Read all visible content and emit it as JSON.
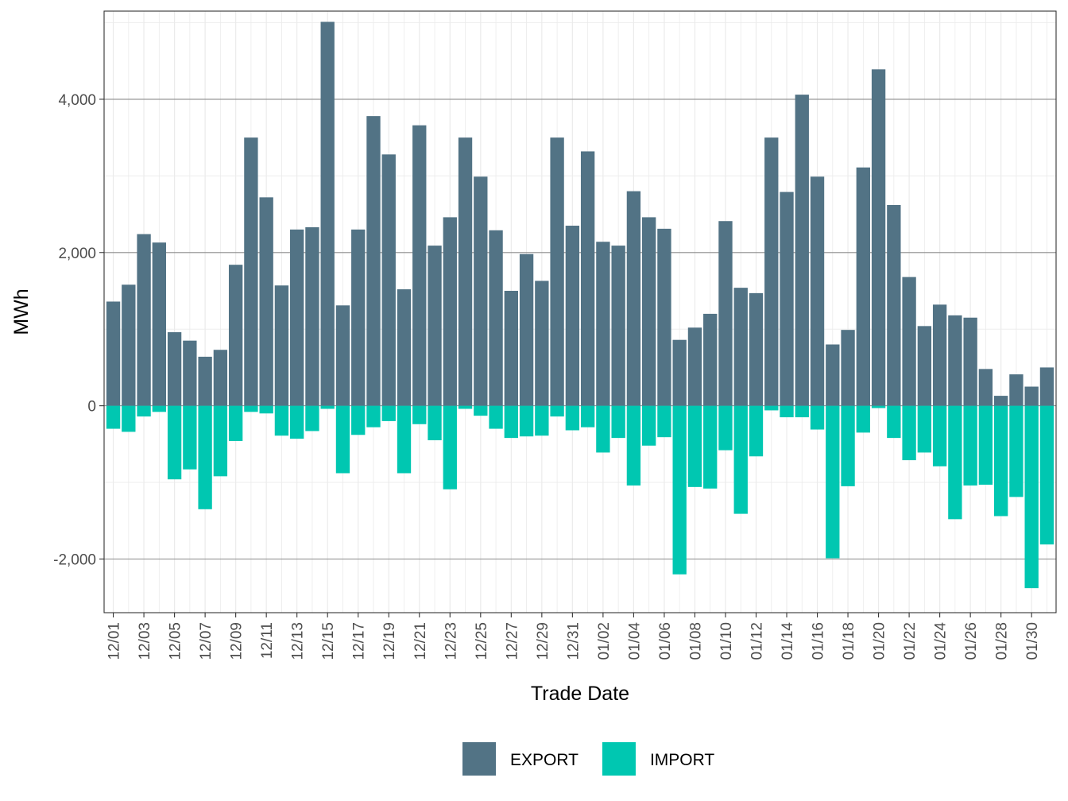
{
  "chart_data": {
    "type": "bar",
    "xlabel": "Trade Date",
    "ylabel": "MWh",
    "ylim": [
      -2700,
      5150
    ],
    "yticks": [
      -2000,
      0,
      2000,
      4000
    ],
    "ytick_labels": [
      "-2,000",
      "0",
      "2,000",
      "4,000"
    ],
    "grid": true,
    "legend_position": "bottom",
    "categories": [
      "12/01",
      "12/02",
      "12/03",
      "12/04",
      "12/05",
      "12/06",
      "12/07",
      "12/08",
      "12/09",
      "12/10",
      "12/11",
      "12/12",
      "12/13",
      "12/14",
      "12/15",
      "12/16",
      "12/17",
      "12/18",
      "12/19",
      "12/20",
      "12/21",
      "12/22",
      "12/23",
      "12/24",
      "12/25",
      "12/26",
      "12/27",
      "12/28",
      "12/29",
      "12/30",
      "12/31",
      "01/01",
      "01/02",
      "01/03",
      "01/04",
      "01/05",
      "01/06",
      "01/07",
      "01/08",
      "01/09",
      "01/10",
      "01/11",
      "01/12",
      "01/13",
      "01/14",
      "01/15",
      "01/16",
      "01/17",
      "01/18",
      "01/19",
      "01/20",
      "01/21",
      "01/22",
      "01/23",
      "01/24",
      "01/25",
      "01/26",
      "01/27",
      "01/28",
      "01/29",
      "01/30",
      "01/31"
    ],
    "x_tick_labels": [
      "12/01",
      "12/03",
      "12/05",
      "12/07",
      "12/09",
      "12/11",
      "12/13",
      "12/15",
      "12/17",
      "12/19",
      "12/21",
      "12/23",
      "12/25",
      "12/27",
      "12/29",
      "12/31",
      "01/02",
      "01/04",
      "01/06",
      "01/08",
      "01/10",
      "01/12",
      "01/14",
      "01/16",
      "01/18",
      "01/20",
      "01/22",
      "01/24",
      "01/26",
      "01/28",
      "01/30"
    ],
    "series": [
      {
        "name": "EXPORT",
        "color": "#527385",
        "values": [
          1360,
          1580,
          2240,
          2130,
          960,
          850,
          640,
          730,
          1840,
          3500,
          2720,
          1570,
          2300,
          2330,
          5010,
          1310,
          2300,
          3780,
          3280,
          1520,
          3660,
          2090,
          2460,
          3500,
          2990,
          2290,
          1500,
          1980,
          1630,
          3500,
          2350,
          3320,
          2140,
          2090,
          2800,
          2460,
          2310,
          860,
          1020,
          1200,
          2410,
          1540,
          1470,
          3500,
          2790,
          4060,
          2990,
          800,
          990,
          3110,
          4390,
          2620,
          1680,
          1040,
          1320,
          1180,
          1150,
          480,
          130,
          410,
          250,
          500
        ]
      },
      {
        "name": "IMPORT",
        "color": "#00c7b1",
        "values": [
          -300,
          -340,
          -140,
          -80,
          -960,
          -830,
          -1350,
          -920,
          -460,
          -80,
          -100,
          -390,
          -430,
          -330,
          -40,
          -880,
          -380,
          -280,
          -200,
          -880,
          -240,
          -450,
          -1090,
          -40,
          -130,
          -300,
          -420,
          -400,
          -390,
          -140,
          -320,
          -280,
          -610,
          -420,
          -1040,
          -520,
          -410,
          -2200,
          -1060,
          -1080,
          -580,
          -1410,
          -660,
          -60,
          -150,
          -150,
          -310,
          -1990,
          -1050,
          -350,
          -30,
          -420,
          -710,
          -610,
          -790,
          -1480,
          -1040,
          -1030,
          -1440,
          -1190,
          -2380,
          -1810
        ]
      }
    ]
  }
}
